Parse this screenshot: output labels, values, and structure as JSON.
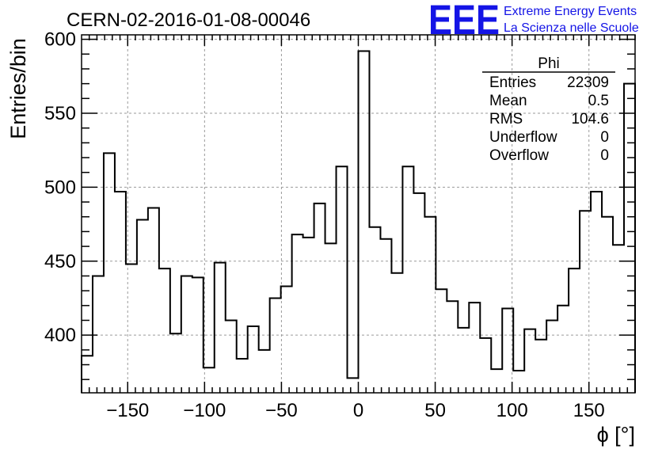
{
  "header": {
    "run_title": "CERN-02-2016-01-08-00046",
    "logo": "EEE",
    "logo_line1": "Extreme Energy Events",
    "logo_line2": "La Scienza nelle Scuole",
    "logo_color": "#1414e6"
  },
  "stats_box": {
    "title": "Phi",
    "rows": [
      {
        "label": "Entries",
        "value": "22309"
      },
      {
        "label": "Mean",
        "value": "0.5"
      },
      {
        "label": "RMS",
        "value": "104.6"
      },
      {
        "label": "Underflow",
        "value": "0"
      },
      {
        "label": "Overflow",
        "value": "0"
      }
    ]
  },
  "chart_data": {
    "type": "bar",
    "histogram": "step",
    "title": "CERN-02-2016-01-08-00046",
    "xlabel": "ϕ [°]",
    "ylabel": "Entries/bin",
    "xlim": [
      -180,
      180
    ],
    "ylim": [
      361,
      603
    ],
    "bin_width": 7.2,
    "x_ticks": [
      -150,
      -100,
      -50,
      0,
      50,
      100,
      150
    ],
    "x_tick_labels": [
      "−150",
      "−100",
      "−50",
      "0",
      "50",
      "100",
      "150"
    ],
    "y_ticks": [
      400,
      450,
      500,
      550,
      600
    ],
    "y_tick_labels": [
      "400",
      "450",
      "500",
      "550",
      "600"
    ],
    "grid": true,
    "legend": "none",
    "line_color": "#000000",
    "values": [
      386,
      440,
      523,
      497,
      448,
      478,
      486,
      445,
      401,
      440,
      439,
      378,
      449,
      410,
      384,
      406,
      390,
      425,
      433,
      468,
      466,
      489,
      462,
      514,
      371,
      592,
      473,
      465,
      442,
      514,
      496,
      480,
      431,
      423,
      405,
      422,
      398,
      377,
      418,
      376,
      404,
      397,
      410,
      420,
      445,
      484,
      497,
      480,
      461,
      570
    ]
  }
}
